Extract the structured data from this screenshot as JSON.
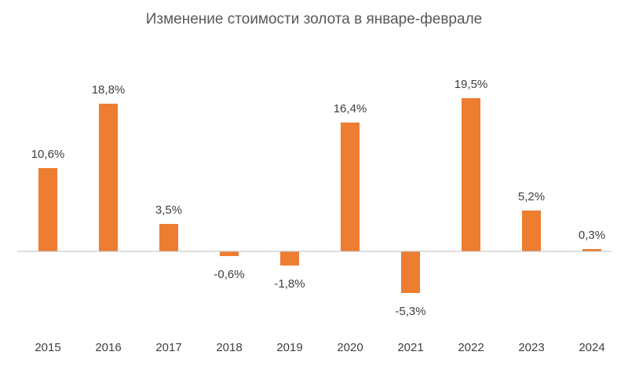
{
  "chart_data": {
    "type": "bar",
    "title": "Изменение стоимости золота в январе-феврале",
    "categories": [
      "2015",
      "2016",
      "2017",
      "2018",
      "2019",
      "2020",
      "2021",
      "2022",
      "2023",
      "2024"
    ],
    "values": [
      10.6,
      18.8,
      3.5,
      -0.6,
      -1.8,
      16.4,
      -5.3,
      19.5,
      5.2,
      0.3
    ],
    "data_labels": [
      "10,6%",
      "18,8%",
      "3,5%",
      "-0,6%",
      "-1,8%",
      "16,4%",
      "-5,3%",
      "19,5%",
      "5,2%",
      "0,3%"
    ],
    "xlabel": "",
    "ylabel": "",
    "ylim": [
      -10,
      20
    ],
    "grid": false,
    "legend": "none",
    "bar_color": "#ED7D31",
    "axis_color": "#BFBFBF"
  }
}
